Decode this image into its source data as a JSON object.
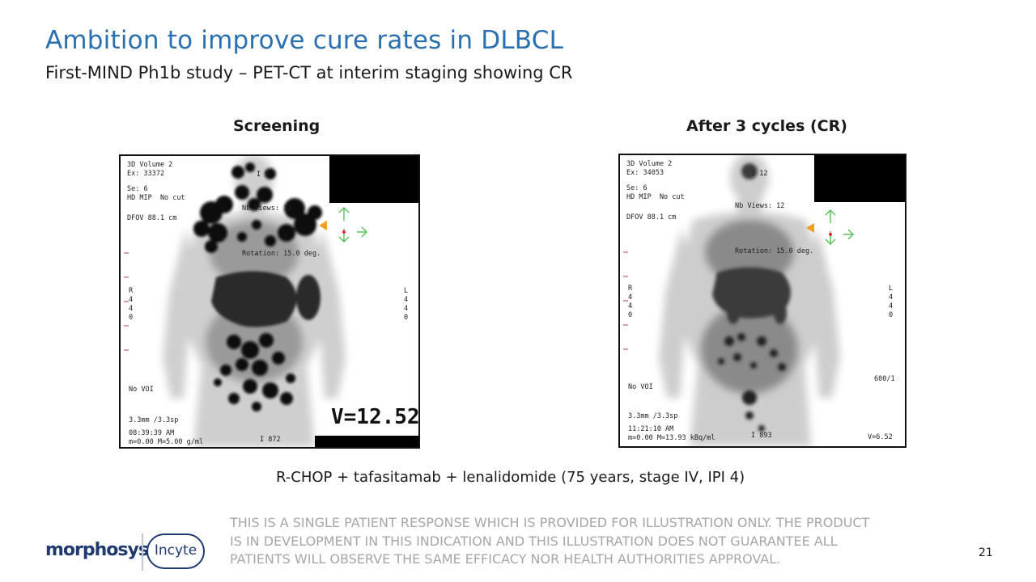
{
  "slide": {
    "title": "Ambition to improve cure rates in DLBCL",
    "subtitle": "First-MIND Ph1b study – PET-CT at interim staging showing CR",
    "caption_left": "Screening",
    "caption_right": "After 3 cycles (CR)",
    "regimen": "R-CHOP + tafasitamab + lenalidomide (75 years, stage IV, IPI 4)",
    "disclaimer_lines": [
      "THIS IS A SINGLE PATIENT RESPONSE WHICH IS PROVIDED FOR ILLUSTRATION ONLY. THE PRODUCT",
      "IS IN DEVELOPMENT IN THIS INDICATION AND THIS ILLUSTRATION DOES NOT GUARANTEE ALL",
      "PATIENTS WILL OBSERVE THE SAME EFFICACY NOR HEALTH AUTHORITIES APPROVAL."
    ],
    "page_number": "21"
  },
  "logos": {
    "morphosys": "morphosys",
    "incyte": "Incyte"
  },
  "scan_left": {
    "header": "3D Volume 2\nEx: 33372",
    "series": "Se: 6\nHD MIP  No cut",
    "dfov": "DFOV 88.1 cm",
    "nb_views": "Nb Views: 12",
    "rotation": "Rotation: 15.0 deg.",
    "r_label": "R\n4\n4\n0",
    "l_label": "L\n4\n4\n0",
    "voi": "No VOI",
    "thickness": "3.3mm /3.3sp",
    "time": "08:39:39 AM\nm=0.00 M=5.00 g/ml",
    "image_no": "I 872",
    "v_value": "V=12.52",
    "top_mark": "I 9"
  },
  "scan_right": {
    "header": "3D Volume 2\nEx: 34053",
    "series": "Se: 6\nHD MIP  No cut",
    "dfov": "DFOV 88.1 cm",
    "nb_views": "Nb Views: 12",
    "rotation": "Rotation: 15.0 deg.",
    "r_label": "R\n4\n4\n0",
    "l_label": "L\n4\n4\n0",
    "voi": "No VOI",
    "thickness": "3.3mm /3.3sp",
    "time": "11:21:10 AM\nm=0.00 M=13.93 kBq/ml",
    "image_no": "I 893",
    "v_value": "V=6.52",
    "ratio": "600/1",
    "top_mark": "I 12"
  }
}
